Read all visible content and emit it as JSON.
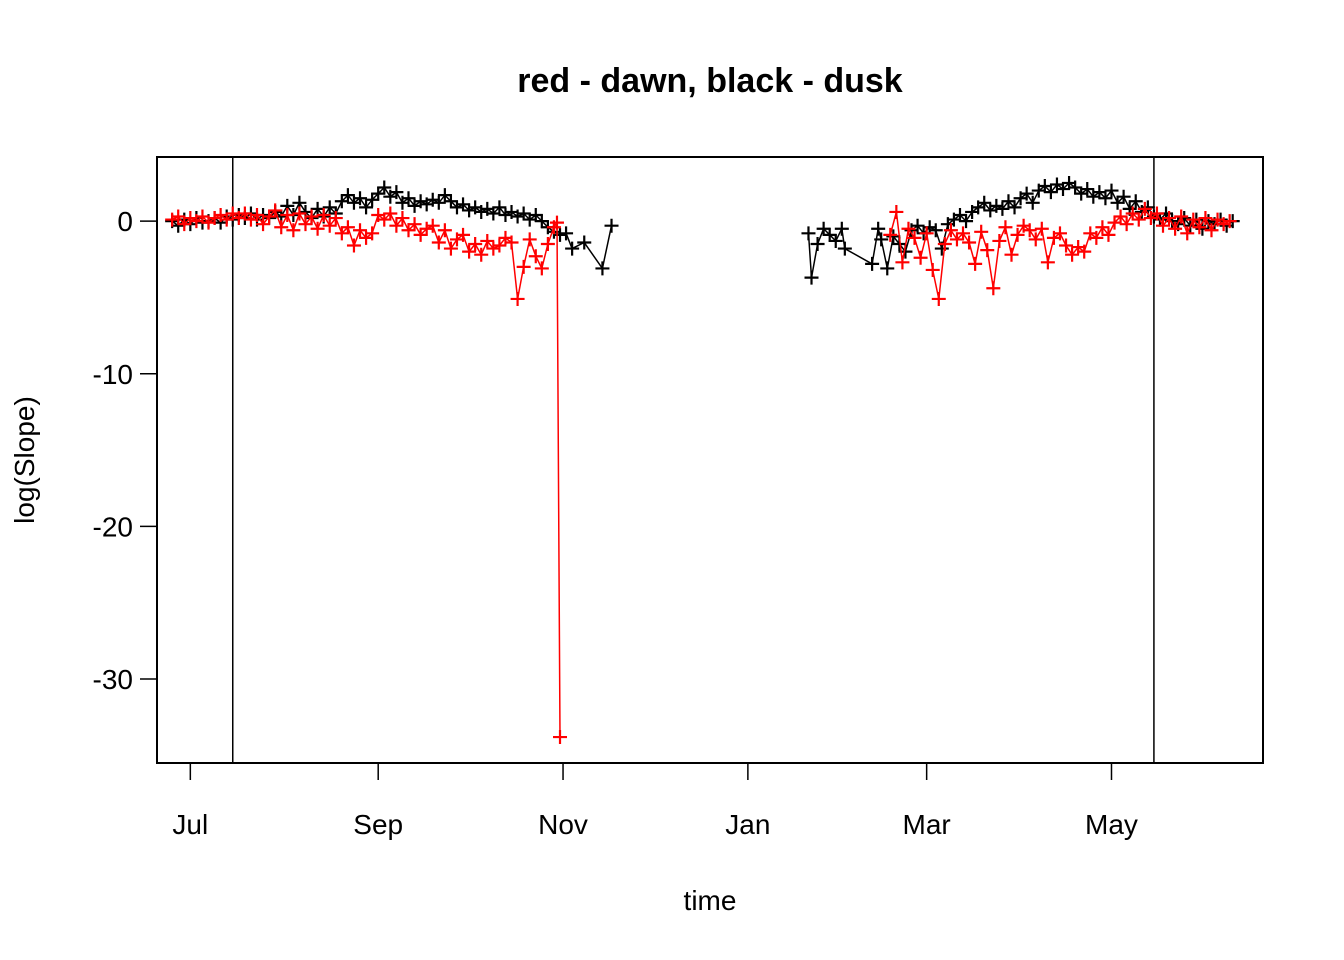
{
  "chart_data": {
    "type": "line",
    "title": "red - dawn, black - dusk",
    "xlabel": "time",
    "ylabel": "log(Slope)",
    "x_axis_type": "date",
    "xlim": [
      "2013-06-20",
      "2014-06-20"
    ],
    "ylim": [
      -35.5,
      4.2
    ],
    "x_ticks": [
      {
        "date": "2013-07-01",
        "label": "Jul"
      },
      {
        "date": "2013-09-01",
        "label": "Sep"
      },
      {
        "date": "2013-11-01",
        "label": "Nov"
      },
      {
        "date": "2014-01-01",
        "label": "Jan"
      },
      {
        "date": "2014-03-01",
        "label": "Mar"
      },
      {
        "date": "2014-05-01",
        "label": "May"
      }
    ],
    "y_ticks": [
      {
        "value": 0,
        "label": "0"
      },
      {
        "value": -10,
        "label": "-10"
      },
      {
        "value": -20,
        "label": "-20"
      },
      {
        "value": -30,
        "label": "-30"
      }
    ],
    "vertical_lines": [
      "2013-07-15",
      "2014-05-15"
    ],
    "marker": "+",
    "grid": false,
    "legend": "none",
    "series": [
      {
        "color": "#000000",
        "points": [
          [
            "2013-06-25",
            0.0
          ],
          [
            "2013-06-27",
            -0.3
          ],
          [
            "2013-06-29",
            0.1
          ],
          [
            "2013-07-01",
            -0.2
          ],
          [
            "2013-07-03",
            0.2
          ],
          [
            "2013-07-05",
            -0.1
          ],
          [
            "2013-07-07",
            0.0
          ],
          [
            "2013-07-09",
            0.2
          ],
          [
            "2013-07-11",
            -0.1
          ],
          [
            "2013-07-13",
            0.3
          ],
          [
            "2013-07-15",
            0.1
          ],
          [
            "2013-07-17",
            0.4
          ],
          [
            "2013-07-19",
            0.2
          ],
          [
            "2013-07-21",
            0.5
          ],
          [
            "2013-07-23",
            0.1
          ],
          [
            "2013-07-25",
            0.4
          ],
          [
            "2013-07-27",
            0.2
          ],
          [
            "2013-07-29",
            0.6
          ],
          [
            "2013-07-31",
            0.3
          ],
          [
            "2013-08-02",
            1.0
          ],
          [
            "2013-08-04",
            0.4
          ],
          [
            "2013-08-06",
            1.2
          ],
          [
            "2013-08-08",
            0.6
          ],
          [
            "2013-08-10",
            0.2
          ],
          [
            "2013-08-12",
            0.8
          ],
          [
            "2013-08-14",
            0.3
          ],
          [
            "2013-08-16",
            0.9
          ],
          [
            "2013-08-18",
            0.5
          ],
          [
            "2013-08-20",
            1.3
          ],
          [
            "2013-08-22",
            1.7
          ],
          [
            "2013-08-24",
            1.2
          ],
          [
            "2013-08-26",
            1.5
          ],
          [
            "2013-08-28",
            0.9
          ],
          [
            "2013-08-30",
            1.4
          ],
          [
            "2013-09-01",
            1.8
          ],
          [
            "2013-09-03",
            2.2
          ],
          [
            "2013-09-05",
            1.6
          ],
          [
            "2013-09-07",
            1.9
          ],
          [
            "2013-09-09",
            1.2
          ],
          [
            "2013-09-11",
            1.5
          ],
          [
            "2013-09-13",
            1.0
          ],
          [
            "2013-09-15",
            1.3
          ],
          [
            "2013-09-17",
            1.1
          ],
          [
            "2013-09-19",
            1.4
          ],
          [
            "2013-09-21",
            1.2
          ],
          [
            "2013-09-23",
            1.7
          ],
          [
            "2013-09-25",
            1.3
          ],
          [
            "2013-09-27",
            0.9
          ],
          [
            "2013-09-29",
            1.1
          ],
          [
            "2013-10-01",
            0.7
          ],
          [
            "2013-10-03",
            0.9
          ],
          [
            "2013-10-05",
            0.6
          ],
          [
            "2013-10-07",
            0.8
          ],
          [
            "2013-10-09",
            0.5
          ],
          [
            "2013-10-11",
            0.9
          ],
          [
            "2013-10-13",
            0.4
          ],
          [
            "2013-10-15",
            0.6
          ],
          [
            "2013-10-17",
            0.3
          ],
          [
            "2013-10-19",
            0.5
          ],
          [
            "2013-10-21",
            0.1
          ],
          [
            "2013-10-23",
            0.4
          ],
          [
            "2013-10-25",
            0.0
          ],
          [
            "2013-10-27",
            -0.4
          ],
          [
            "2013-10-29",
            -0.7
          ],
          [
            "2013-10-31",
            -0.9
          ],
          [
            "2013-11-02",
            -0.8
          ],
          [
            "2013-11-04",
            -1.8
          ],
          [
            "2013-11-08",
            -1.4
          ],
          [
            "2013-11-14",
            -3.1
          ],
          [
            "2013-11-17",
            -0.3
          ],
          [
            "2014-01-21",
            -0.8
          ],
          [
            "2014-01-22",
            -3.7
          ],
          [
            "2014-01-24",
            -1.5
          ],
          [
            "2014-01-26",
            -0.5
          ],
          [
            "2014-01-28",
            -0.9
          ],
          [
            "2014-01-30",
            -1.3
          ],
          [
            "2014-02-01",
            -0.5
          ],
          [
            "2014-02-02",
            -1.8
          ],
          [
            "2014-02-11",
            -2.8
          ],
          [
            "2014-02-13",
            -0.5
          ],
          [
            "2014-02-14",
            -1.2
          ],
          [
            "2014-02-16",
            -3.1
          ],
          [
            "2014-02-18",
            -1.0
          ],
          [
            "2014-02-20",
            -1.5
          ],
          [
            "2014-02-22",
            -2.0
          ],
          [
            "2014-02-24",
            -0.6
          ],
          [
            "2014-02-26",
            -0.3
          ],
          [
            "2014-02-28",
            -0.8
          ],
          [
            "2014-03-02",
            -0.4
          ],
          [
            "2014-03-04",
            -0.6
          ],
          [
            "2014-03-06",
            -1.8
          ],
          [
            "2014-03-08",
            -0.2
          ],
          [
            "2014-03-10",
            0.1
          ],
          [
            "2014-03-12",
            0.4
          ],
          [
            "2014-03-14",
            0.0
          ],
          [
            "2014-03-16",
            0.6
          ],
          [
            "2014-03-18",
            0.9
          ],
          [
            "2014-03-20",
            1.2
          ],
          [
            "2014-03-22",
            0.7
          ],
          [
            "2014-03-24",
            1.0
          ],
          [
            "2014-03-26",
            0.8
          ],
          [
            "2014-03-28",
            1.3
          ],
          [
            "2014-03-30",
            0.9
          ],
          [
            "2014-04-01",
            1.5
          ],
          [
            "2014-04-03",
            1.8
          ],
          [
            "2014-04-05",
            1.2
          ],
          [
            "2014-04-07",
            2.0
          ],
          [
            "2014-04-09",
            2.3
          ],
          [
            "2014-04-11",
            1.9
          ],
          [
            "2014-04-13",
            2.4
          ],
          [
            "2014-04-15",
            2.1
          ],
          [
            "2014-04-17",
            2.5
          ],
          [
            "2014-04-19",
            2.2
          ],
          [
            "2014-04-21",
            1.8
          ],
          [
            "2014-04-23",
            2.1
          ],
          [
            "2014-04-25",
            1.6
          ],
          [
            "2014-04-27",
            1.9
          ],
          [
            "2014-04-29",
            1.5
          ],
          [
            "2014-05-01",
            2.0
          ],
          [
            "2014-05-03",
            1.2
          ],
          [
            "2014-05-05",
            1.6
          ],
          [
            "2014-05-07",
            0.8
          ],
          [
            "2014-05-09",
            1.3
          ],
          [
            "2014-05-11",
            0.6
          ],
          [
            "2014-05-13",
            0.9
          ],
          [
            "2014-05-15",
            0.3
          ],
          [
            "2014-05-17",
            0.1
          ],
          [
            "2014-05-19",
            0.5
          ],
          [
            "2014-05-21",
            0.0
          ],
          [
            "2014-05-23",
            -0.2
          ],
          [
            "2014-05-25",
            0.2
          ],
          [
            "2014-05-27",
            -0.3
          ],
          [
            "2014-05-29",
            0.1
          ],
          [
            "2014-05-31",
            -0.5
          ],
          [
            "2014-06-02",
            0.0
          ],
          [
            "2014-06-04",
            -0.2
          ],
          [
            "2014-06-06",
            0.1
          ],
          [
            "2014-06-08",
            -0.3
          ],
          [
            "2014-06-10",
            0.0
          ]
        ]
      },
      {
        "color": "#ff0000",
        "points": [
          [
            "2013-06-25",
            0.1
          ],
          [
            "2013-06-27",
            0.3
          ],
          [
            "2013-06-29",
            -0.2
          ],
          [
            "2013-07-01",
            0.2
          ],
          [
            "2013-07-03",
            0.0
          ],
          [
            "2013-07-05",
            0.3
          ],
          [
            "2013-07-07",
            -0.1
          ],
          [
            "2013-07-09",
            0.2
          ],
          [
            "2013-07-11",
            0.4
          ],
          [
            "2013-07-13",
            0.1
          ],
          [
            "2013-07-15",
            0.5
          ],
          [
            "2013-07-17",
            0.2
          ],
          [
            "2013-07-19",
            0.5
          ],
          [
            "2013-07-21",
            0.1
          ],
          [
            "2013-07-23",
            0.4
          ],
          [
            "2013-07-25",
            -0.2
          ],
          [
            "2013-07-27",
            0.3
          ],
          [
            "2013-07-29",
            0.7
          ],
          [
            "2013-07-31",
            -0.4
          ],
          [
            "2013-08-02",
            0.4
          ],
          [
            "2013-08-04",
            -0.6
          ],
          [
            "2013-08-06",
            0.5
          ],
          [
            "2013-08-08",
            -0.2
          ],
          [
            "2013-08-10",
            0.3
          ],
          [
            "2013-08-12",
            -0.5
          ],
          [
            "2013-08-14",
            0.4
          ],
          [
            "2013-08-16",
            -0.3
          ],
          [
            "2013-08-18",
            0.2
          ],
          [
            "2013-08-20",
            -0.8
          ],
          [
            "2013-08-22",
            -0.4
          ],
          [
            "2013-08-24",
            -1.6
          ],
          [
            "2013-08-26",
            -0.6
          ],
          [
            "2013-08-28",
            -1.1
          ],
          [
            "2013-08-30",
            -0.8
          ],
          [
            "2013-09-01",
            0.4
          ],
          [
            "2013-09-03",
            0.1
          ],
          [
            "2013-09-05",
            0.5
          ],
          [
            "2013-09-07",
            -0.3
          ],
          [
            "2013-09-09",
            0.2
          ],
          [
            "2013-09-11",
            -0.6
          ],
          [
            "2013-09-13",
            -0.2
          ],
          [
            "2013-09-15",
            -0.9
          ],
          [
            "2013-09-17",
            -0.5
          ],
          [
            "2013-09-19",
            -0.3
          ],
          [
            "2013-09-21",
            -1.4
          ],
          [
            "2013-09-23",
            -0.6
          ],
          [
            "2013-09-25",
            -1.8
          ],
          [
            "2013-09-27",
            -1.2
          ],
          [
            "2013-09-29",
            -0.9
          ],
          [
            "2013-10-01",
            -2.0
          ],
          [
            "2013-10-03",
            -1.5
          ],
          [
            "2013-10-05",
            -2.2
          ],
          [
            "2013-10-07",
            -1.3
          ],
          [
            "2013-10-09",
            -1.8
          ],
          [
            "2013-10-11",
            -1.6
          ],
          [
            "2013-10-13",
            -1.1
          ],
          [
            "2013-10-15",
            -1.4
          ],
          [
            "2013-10-17",
            -5.1
          ],
          [
            "2013-10-19",
            -3.0
          ],
          [
            "2013-10-21",
            -1.2
          ],
          [
            "2013-10-23",
            -2.3
          ],
          [
            "2013-10-25",
            -3.1
          ],
          [
            "2013-10-27",
            -1.5
          ],
          [
            "2013-10-29",
            -0.4
          ],
          [
            "2013-10-30",
            -0.1
          ],
          [
            "2013-10-31",
            -33.8
          ],
          [
            "2014-02-17",
            -0.9
          ],
          [
            "2014-02-19",
            0.6
          ],
          [
            "2014-02-21",
            -2.7
          ],
          [
            "2014-02-23",
            -0.5
          ],
          [
            "2014-02-25",
            -1.1
          ],
          [
            "2014-02-27",
            -2.4
          ],
          [
            "2014-03-01",
            -0.8
          ],
          [
            "2014-03-03",
            -3.2
          ],
          [
            "2014-03-05",
            -5.1
          ],
          [
            "2014-03-07",
            -1.5
          ],
          [
            "2014-03-09",
            -0.6
          ],
          [
            "2014-03-11",
            -1.2
          ],
          [
            "2014-03-13",
            -0.8
          ],
          [
            "2014-03-15",
            -1.4
          ],
          [
            "2014-03-17",
            -2.8
          ],
          [
            "2014-03-19",
            -0.7
          ],
          [
            "2014-03-21",
            -1.9
          ],
          [
            "2014-03-23",
            -4.4
          ],
          [
            "2014-03-25",
            -1.3
          ],
          [
            "2014-03-27",
            -0.4
          ],
          [
            "2014-03-29",
            -2.2
          ],
          [
            "2014-03-31",
            -0.9
          ],
          [
            "2014-04-02",
            -0.3
          ],
          [
            "2014-04-04",
            -0.6
          ],
          [
            "2014-04-06",
            -1.2
          ],
          [
            "2014-04-08",
            -0.5
          ],
          [
            "2014-04-10",
            -2.7
          ],
          [
            "2014-04-12",
            -1.1
          ],
          [
            "2014-04-14",
            -0.8
          ],
          [
            "2014-04-16",
            -1.6
          ],
          [
            "2014-04-18",
            -2.2
          ],
          [
            "2014-04-20",
            -1.7
          ],
          [
            "2014-04-22",
            -2.0
          ],
          [
            "2014-04-24",
            -0.8
          ],
          [
            "2014-04-26",
            -1.1
          ],
          [
            "2014-04-28",
            -0.4
          ],
          [
            "2014-04-30",
            -0.9
          ],
          [
            "2014-05-02",
            -0.1
          ],
          [
            "2014-05-04",
            0.3
          ],
          [
            "2014-05-06",
            -0.2
          ],
          [
            "2014-05-08",
            0.5
          ],
          [
            "2014-05-10",
            0.1
          ],
          [
            "2014-05-12",
            0.8
          ],
          [
            "2014-05-14",
            0.2
          ],
          [
            "2014-05-16",
            0.5
          ],
          [
            "2014-05-18",
            -0.3
          ],
          [
            "2014-05-20",
            0.2
          ],
          [
            "2014-05-22",
            -0.5
          ],
          [
            "2014-05-24",
            0.3
          ],
          [
            "2014-05-26",
            -0.8
          ],
          [
            "2014-05-28",
            0.1
          ],
          [
            "2014-05-30",
            -0.4
          ],
          [
            "2014-06-01",
            0.2
          ],
          [
            "2014-06-03",
            -0.6
          ],
          [
            "2014-06-05",
            0.1
          ],
          [
            "2014-06-07",
            -0.2
          ],
          [
            "2014-06-09",
            0.0
          ]
        ]
      }
    ]
  }
}
